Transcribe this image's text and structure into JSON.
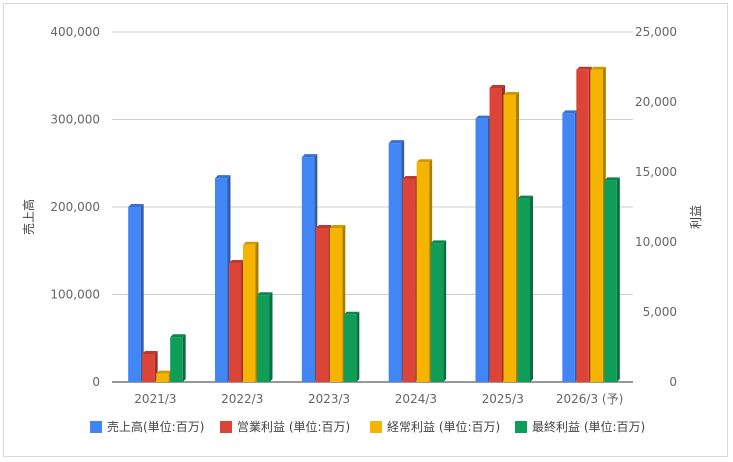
{
  "chart_data": {
    "type": "bar",
    "categories": [
      "2021/3",
      "2022/3",
      "2023/3",
      "2024/3",
      "2025/3",
      "2026/3 (予)"
    ],
    "series": [
      {
        "name": "売上高(単位:百万)",
        "axis": "left",
        "color": "#4285F4",
        "values": [
          200000,
          233000,
          257000,
          273000,
          301000,
          307000
        ]
      },
      {
        "name": "営業利益 (単位:百万)",
        "axis": "right",
        "color": "#DB4437",
        "values": [
          2000,
          8500,
          11000,
          14500,
          21000,
          22300
        ]
      },
      {
        "name": "経常利益 (単位:百万)",
        "axis": "right",
        "color": "#F4B400",
        "values": [
          600,
          9800,
          11000,
          15700,
          20500,
          22300
        ]
      },
      {
        "name": "最終利益 (単位:百万)",
        "axis": "right",
        "color": "#0F9D58",
        "values": [
          3200,
          6200,
          4800,
          9900,
          13100,
          14400
        ]
      }
    ],
    "ylabel": "売上高",
    "y2label": "利益",
    "ylim": [
      0,
      400000
    ],
    "y2lim": [
      0,
      25000
    ],
    "yticks": [
      "0",
      "100,000",
      "200,000",
      "300,000",
      "400,000"
    ],
    "y2ticks": [
      "0",
      "5,000",
      "10,000",
      "15,000",
      "20,000",
      "25,000"
    ],
    "grid": true,
    "legend": "bottom"
  }
}
